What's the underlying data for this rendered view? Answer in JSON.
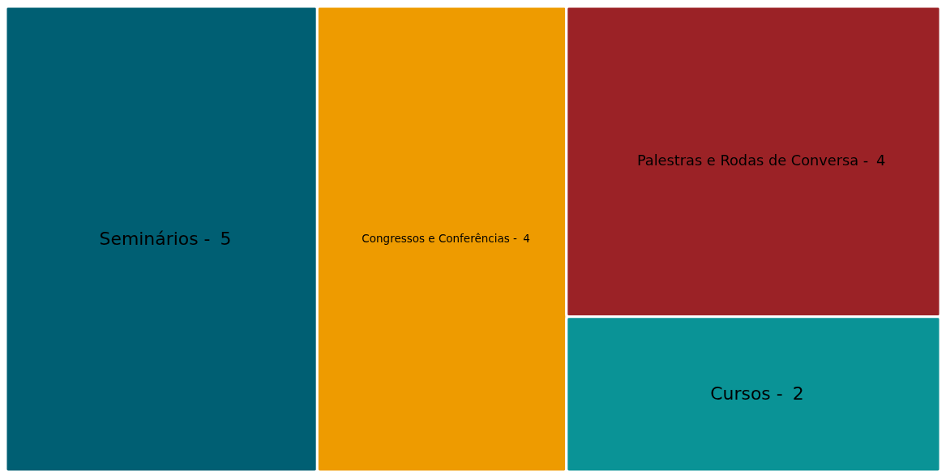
{
  "chart_data": {
    "type": "other",
    "categories": [
      "Seminários -",
      "Congressos e Conferências -",
      "Palestras e Rodas de Conversa -",
      "Cursos -"
    ],
    "values": [
      5,
      4,
      4,
      2
    ],
    "data_labels": true,
    "colors": [
      "#005f73",
      "#ee9b00",
      "#9b2226",
      "#0a9396"
    ]
  }
}
